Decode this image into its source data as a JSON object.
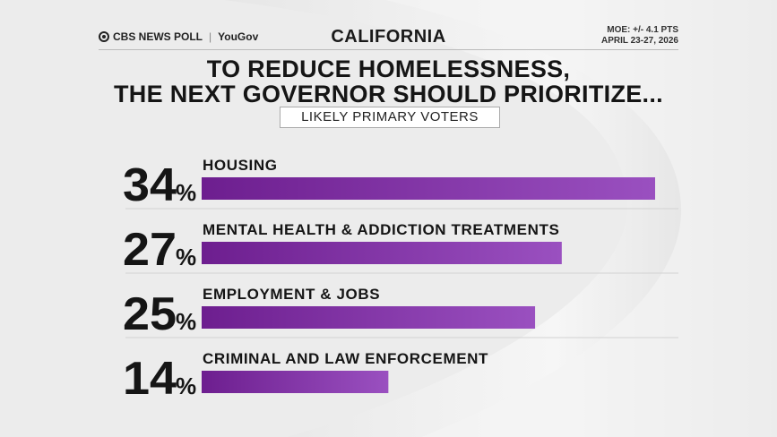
{
  "header": {
    "brand_left": "CBS NEWS POLL",
    "brand_right": "YouGov",
    "region": "CALIFORNIA",
    "moe": "MOE: +/- 4.1 PTS",
    "dates": "APRIL 23-27, 2026"
  },
  "colors": {
    "bar_start": "#6d1e8f",
    "bar_end": "#9a50c0",
    "text": "#151515"
  },
  "chart_data": {
    "type": "bar",
    "orientation": "horizontal",
    "title_line1": "TO REDUCE HOMELESSNESS,",
    "title_line2": "THE NEXT GOVERNOR SHOULD PRIORITIZE...",
    "subtitle": "LIKELY PRIMARY VOTERS",
    "categories": [
      "HOUSING",
      "MENTAL HEALTH & ADDICTION TREATMENTS",
      "EMPLOYMENT & JOBS",
      "CRIMINAL AND LAW ENFORCEMENT"
    ],
    "values": [
      34,
      27,
      25,
      14
    ],
    "value_labels": [
      "34",
      "27",
      "25",
      "14"
    ],
    "unit": "%",
    "xlim": [
      0,
      34
    ]
  }
}
